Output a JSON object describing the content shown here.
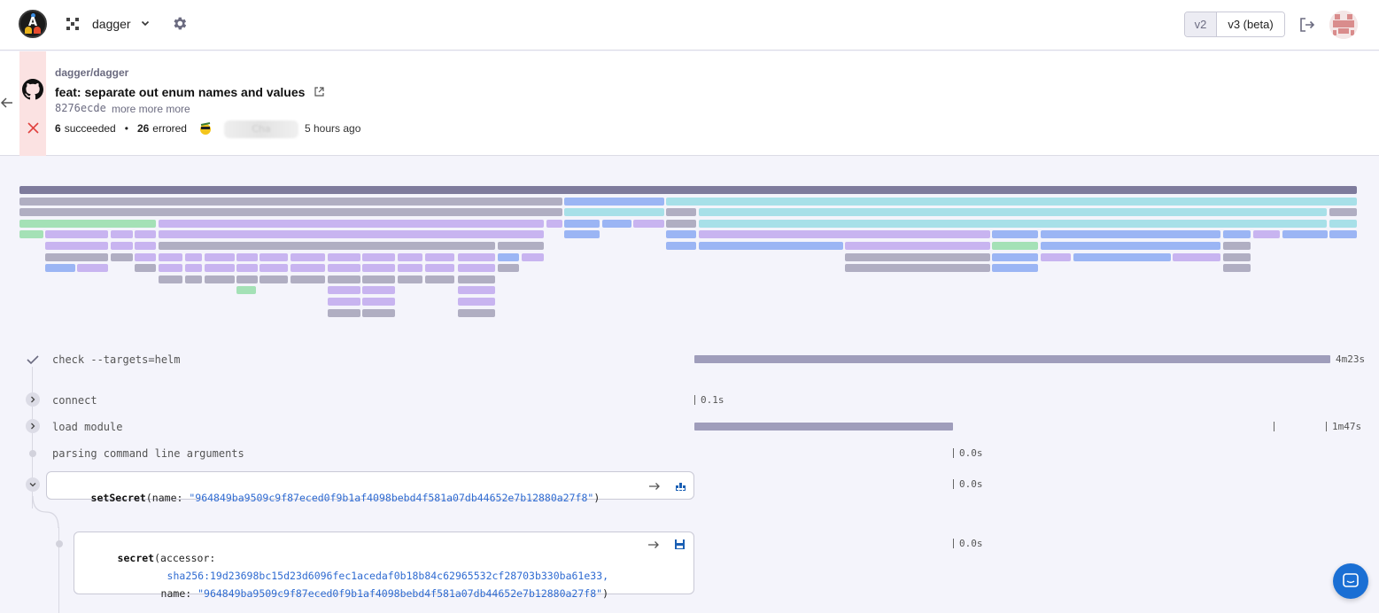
{
  "topbar": {
    "org_name": "dagger",
    "version_v2": "v2",
    "version_v3": "v3 (beta)"
  },
  "summary": {
    "repo": "dagger/dagger",
    "commit_title": "feat: separate out enum names and values",
    "commit_sha": "8276ecde",
    "commit_more": "more more more",
    "succeeded_count": "6",
    "succeeded_label": "succeeded",
    "errored_count": "26",
    "errored_label": "errored",
    "separator": "•",
    "author_name": "Cha",
    "time_ago": "5 hours ago"
  },
  "trace": {
    "rows": [
      {
        "label": "check --targets=helm",
        "duration": "4m23s"
      },
      {
        "label": "connect",
        "duration": "0.1s"
      },
      {
        "label": "load module",
        "duration": "1m47s"
      },
      {
        "label": "parsing command line arguments",
        "duration": "0.0s"
      }
    ],
    "set_secret": {
      "fn": "setSecret",
      "open": "(",
      "arg_name": "name: ",
      "arg_value": "\"964849ba9509c9f87eced0f9b1af4098bebd4f581a07db44652e7b12880a27f8\"",
      "close": ")",
      "duration": "0.0s"
    },
    "secret": {
      "fn": "secret",
      "line1_rest": "(accessor:",
      "line2_value": "sha256:19d23698bc15d23d6096fec1acedaf0b18b84c62965532cf28703b330ba61e33,",
      "line3_name": "name: ",
      "line3_value": "\"964849ba9509c9f87eced0f9b1af4098bebd4f581a07db44652e7b12880a27f8\"",
      "line3_close": ")",
      "duration": "0.0s"
    }
  },
  "icons": [
    "app-logo-icon",
    "org-icon",
    "chevron-down-icon",
    "gear-icon",
    "logout-icon",
    "avatar",
    "back-arrow-icon",
    "github-icon",
    "error-x-icon",
    "external-link-icon",
    "check-icon",
    "expand-icon",
    "collapse-icon",
    "arrow-right-icon",
    "save-icon",
    "chat-icon"
  ],
  "colors": {
    "grey": "#b0aec2",
    "dark": "#7e7b9c",
    "purple": "#c8b4f0",
    "blue": "#9bb5f4",
    "cyan": "#a7e0e8",
    "green": "#a4e1b6",
    "error_bg": "#fbe2e2"
  }
}
